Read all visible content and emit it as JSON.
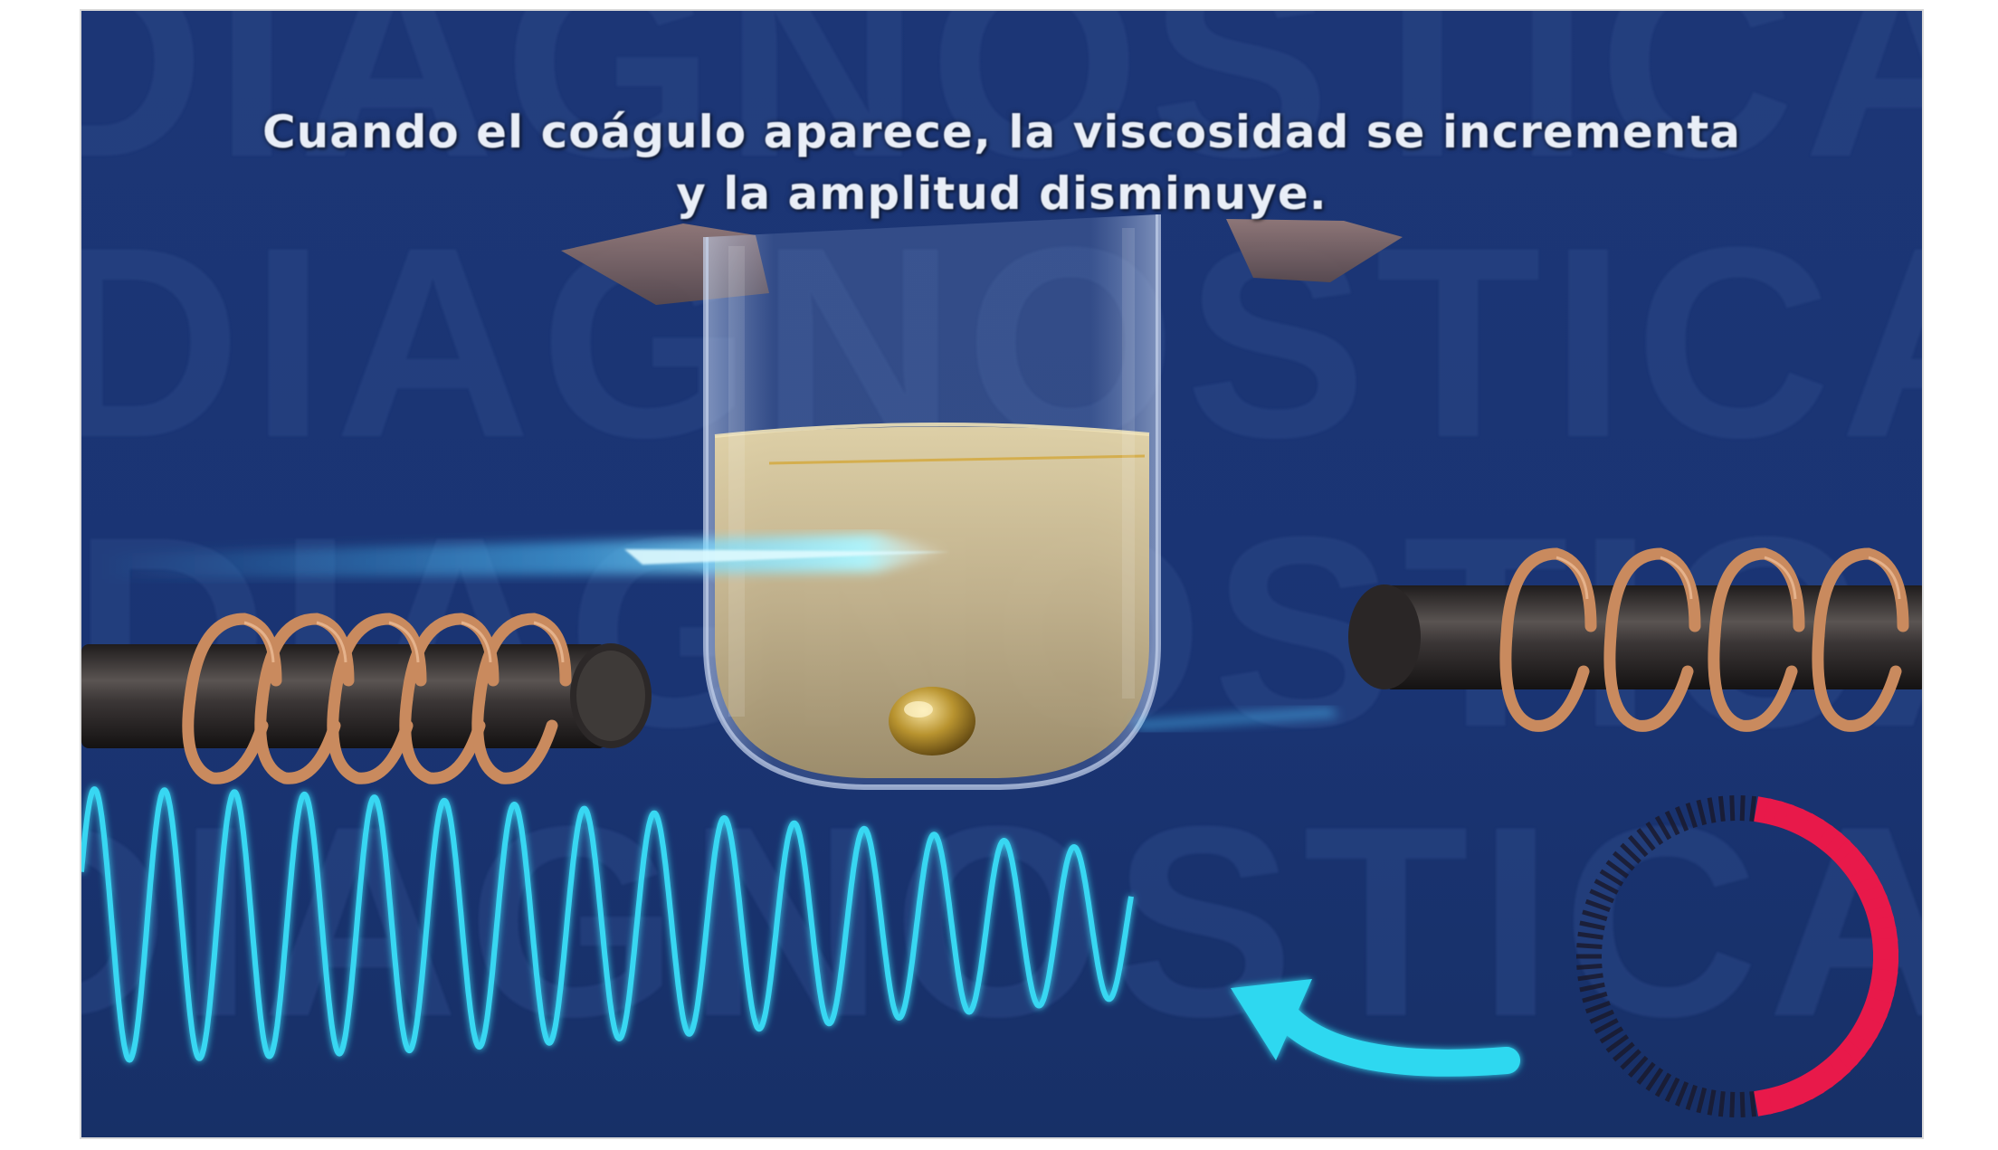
{
  "caption": {
    "line1": "Cuando el coágulo aparece, la viscosidad se incrementa",
    "line2": "y la amplitud disminuye."
  },
  "background_watermark": [
    "DIAGNOSTICA",
    "DIAGNOSTICA",
    "DIAGNOSTICA",
    "DIAGNOSTICA"
  ],
  "colors": {
    "background": "#1b3575",
    "waveform": "#38d7f2",
    "arrow": "#2fd8f0",
    "coil": "#c98a5e",
    "rod": "#3a3636",
    "liquid": "#d9c79a",
    "ring_active": "#e8194a",
    "ring_inactive": "#1a1a2e"
  },
  "ring_progress": 0.45,
  "icons": {
    "arrow": "curved-arrow-icon",
    "ring": "progress-ring-icon"
  }
}
